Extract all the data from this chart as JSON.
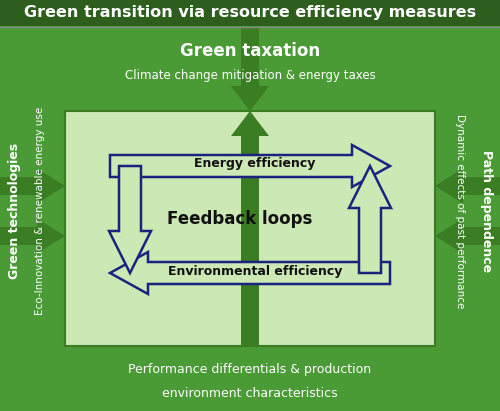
{
  "title": "Green transition via resource efficiency measures",
  "title_bg": "#2e5e1e",
  "title_color": "white",
  "title_fontsize": 11.5,
  "outer_bg": "#4a9a35",
  "inner_light_bg": "#cce8b5",
  "top_band_text1": "Green taxation",
  "top_band_text2": "Climate change mitigation & energy taxes",
  "bottom_band_text1": "Performance differentials & production",
  "bottom_band_text2": "environment characteristics",
  "left_text1": "Green technologies",
  "left_text2": "Eco-Innovation & renewable energy use",
  "right_text1": "Path dependence",
  "right_text2": "Dynamic effects of past performance",
  "center_text": "Feedback loops",
  "upper_arrow_text": "Energy efficiency",
  "lower_arrow_text": "Environmental efficiency",
  "arrow_color": "#1a237e",
  "arrow_fill": "#cce8b5",
  "green_arrow_color": "#3a7d22",
  "band_text_color": "white",
  "side_text_color": "white",
  "inner_text_color": "#111111",
  "center_text_color": "#111111"
}
